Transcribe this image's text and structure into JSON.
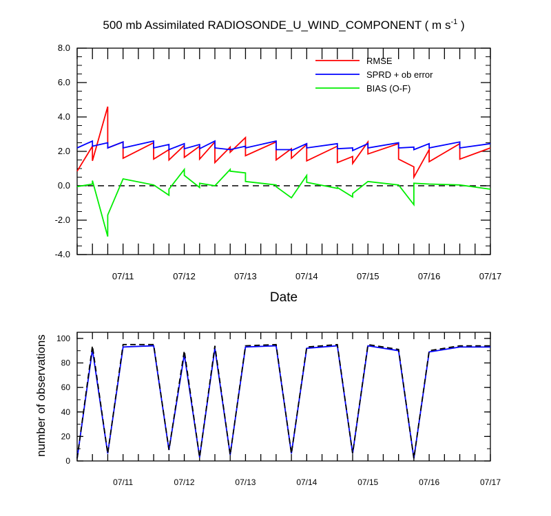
{
  "chart_data": [
    {
      "type": "line",
      "title": "500 mb Assimilated RADIOSONDE_U_WIND_COMPONENT ( m s",
      "title_sup": "-1",
      "title_end": " )",
      "xlabel": "Date",
      "ylabel": "",
      "ylim": [
        -4,
        8
      ],
      "xlim": [
        10.25,
        17.0
      ],
      "y_ticks": [
        "-4.0",
        "-2.0",
        "0.0",
        "2.0",
        "4.0",
        "6.0",
        "8.0"
      ],
      "x_ticks": [
        {
          "x": 11,
          "label": "07/11"
        },
        {
          "x": 12,
          "label": "07/12"
        },
        {
          "x": 13,
          "label": "07/13"
        },
        {
          "x": 14,
          "label": "07/14"
        },
        {
          "x": 15,
          "label": "07/15"
        },
        {
          "x": 16,
          "label": "07/16"
        },
        {
          "x": 17,
          "label": "07/17"
        }
      ],
      "grid": false,
      "legend_position": "top-right",
      "zero_line": {
        "y": 0,
        "style": "dashed",
        "color": "#000000"
      },
      "series": [
        {
          "name": "RMSE",
          "color": "#ff0000",
          "x": [
            10.25,
            10.5,
            10.5,
            10.75,
            10.75,
            11.0,
            11.0,
            11.5,
            11.5,
            11.75,
            11.75,
            12.0,
            12.0,
            12.25,
            12.25,
            12.5,
            12.5,
            12.75,
            12.75,
            13.0,
            13.0,
            13.5,
            13.5,
            13.75,
            13.75,
            14.0,
            14.0,
            14.5,
            14.5,
            14.75,
            14.75,
            15.0,
            15.0,
            15.5,
            15.5,
            15.75,
            15.75,
            16.0,
            16.0,
            16.5,
            16.5,
            17.0
          ],
          "y": [
            0.85,
            2.3,
            1.45,
            4.6,
            2.2,
            2.55,
            1.6,
            2.5,
            1.55,
            2.1,
            1.5,
            2.35,
            1.65,
            2.3,
            1.55,
            2.55,
            1.35,
            2.25,
            1.95,
            2.8,
            1.75,
            2.55,
            1.5,
            2.15,
            1.6,
            2.4,
            1.45,
            2.3,
            1.35,
            1.7,
            1.3,
            2.55,
            1.85,
            2.45,
            1.55,
            1.1,
            0.5,
            2.1,
            1.4,
            2.45,
            1.55,
            2.2
          ],
          "values": [
            0.85,
            2.3,
            1.45,
            4.6,
            2.2,
            2.55,
            1.6,
            2.5,
            1.55,
            2.1,
            1.5,
            2.35,
            1.65,
            2.3,
            1.55,
            2.55,
            1.35,
            2.25,
            1.95,
            2.8,
            1.75,
            2.55,
            1.5,
            2.15,
            1.6,
            2.4,
            1.45,
            2.3,
            1.35,
            1.7,
            1.3,
            2.55,
            1.85,
            2.45,
            1.55,
            1.1,
            0.5,
            2.1,
            1.4,
            2.45,
            1.55,
            2.2
          ]
        },
        {
          "name": "SPRD + ob error",
          "color": "#0000ff",
          "x": [
            10.25,
            10.5,
            10.5,
            10.75,
            10.75,
            11.0,
            11.0,
            11.5,
            11.5,
            11.75,
            11.75,
            12.0,
            12.0,
            12.25,
            12.25,
            12.5,
            12.5,
            12.75,
            12.75,
            13.0,
            13.0,
            13.5,
            13.5,
            13.75,
            13.75,
            14.0,
            14.0,
            14.5,
            14.5,
            14.75,
            14.75,
            15.0,
            15.0,
            15.5,
            15.5,
            15.75,
            15.75,
            16.0,
            16.0,
            16.5,
            16.5,
            17.0
          ],
          "y": [
            2.2,
            2.6,
            2.3,
            2.5,
            2.2,
            2.55,
            2.2,
            2.6,
            2.2,
            2.4,
            2.1,
            2.45,
            2.15,
            2.4,
            2.15,
            2.6,
            2.2,
            2.1,
            2.1,
            2.3,
            2.2,
            2.6,
            2.1,
            2.1,
            2.05,
            2.45,
            2.2,
            2.45,
            2.15,
            2.2,
            2.05,
            2.45,
            2.2,
            2.5,
            2.2,
            2.25,
            2.1,
            2.45,
            2.2,
            2.55,
            2.2,
            2.45
          ],
          "values": [
            2.2,
            2.6,
            2.3,
            2.5,
            2.2,
            2.55,
            2.2,
            2.6,
            2.2,
            2.4,
            2.1,
            2.45,
            2.15,
            2.4,
            2.15,
            2.6,
            2.2,
            2.1,
            2.1,
            2.3,
            2.2,
            2.6,
            2.1,
            2.1,
            2.05,
            2.45,
            2.2,
            2.45,
            2.15,
            2.2,
            2.05,
            2.45,
            2.2,
            2.5,
            2.2,
            2.25,
            2.1,
            2.45,
            2.2,
            2.55,
            2.2,
            2.45
          ]
        },
        {
          "name": "BIAS (O-F)",
          "color": "#00ee00",
          "x": [
            10.25,
            10.5,
            10.5,
            10.75,
            10.75,
            11.0,
            11.0,
            11.5,
            11.5,
            11.75,
            11.75,
            12.0,
            12.0,
            12.25,
            12.25,
            12.5,
            12.5,
            12.75,
            12.75,
            13.0,
            13.0,
            13.5,
            13.5,
            13.75,
            13.75,
            14.0,
            14.0,
            14.5,
            14.5,
            14.75,
            14.75,
            15.0,
            15.0,
            15.5,
            15.5,
            15.75,
            15.75,
            16.0,
            16.0,
            16.5,
            16.5,
            17.0
          ],
          "y": [
            -0.05,
            0.1,
            0.3,
            -2.95,
            -1.7,
            0.4,
            0.4,
            0.05,
            0.05,
            -0.55,
            -0.2,
            0.95,
            0.6,
            -0.1,
            0.15,
            0.0,
            0.0,
            0.95,
            0.85,
            0.75,
            0.25,
            0.05,
            -0.05,
            -0.7,
            -0.7,
            0.6,
            0.2,
            -0.15,
            -0.1,
            -0.65,
            -0.45,
            0.25,
            0.25,
            0.05,
            0.05,
            -1.1,
            0.15,
            0.1,
            0.1,
            0.05,
            0.05,
            -0.2
          ],
          "values": [
            -0.05,
            0.1,
            0.3,
            -2.95,
            -1.7,
            0.4,
            0.4,
            0.05,
            0.05,
            -0.55,
            -0.2,
            0.95,
            0.6,
            -0.1,
            0.15,
            0.0,
            0.0,
            0.95,
            0.85,
            0.75,
            0.25,
            0.05,
            -0.05,
            -0.7,
            -0.7,
            0.6,
            0.2,
            -0.15,
            -0.1,
            -0.65,
            -0.45,
            0.25,
            0.25,
            0.05,
            0.05,
            -1.1,
            0.15,
            0.1,
            0.1,
            0.05,
            0.05,
            -0.2
          ]
        }
      ]
    },
    {
      "type": "line",
      "title": "",
      "xlabel": "",
      "ylabel": "number of observations",
      "ylim": [
        0,
        105
      ],
      "xlim": [
        10.25,
        17.0
      ],
      "y_ticks": [
        "0",
        "20",
        "40",
        "60",
        "80",
        "100"
      ],
      "x_ticks": [
        {
          "x": 11,
          "label": "07/11"
        },
        {
          "x": 12,
          "label": "07/12"
        },
        {
          "x": 13,
          "label": "07/13"
        },
        {
          "x": 14,
          "label": "07/14"
        },
        {
          "x": 15,
          "label": "07/15"
        },
        {
          "x": 16,
          "label": "07/16"
        },
        {
          "x": 17,
          "label": "07/17"
        }
      ],
      "grid": false,
      "series": [
        {
          "color": "#0000ff",
          "style": "solid",
          "x": [
            10.25,
            10.5,
            10.75,
            11.0,
            11.5,
            11.75,
            12.0,
            12.25,
            12.5,
            12.75,
            13.0,
            13.5,
            13.75,
            14.0,
            14.5,
            14.75,
            15.0,
            15.5,
            15.75,
            16.0,
            16.5,
            17.0
          ],
          "y": [
            2,
            91,
            6,
            93,
            94,
            9,
            87,
            3,
            92,
            5,
            93,
            94,
            6,
            92,
            94,
            6,
            94,
            90,
            2,
            89,
            93,
            93
          ],
          "values": [
            2,
            91,
            6,
            93,
            94,
            9,
            87,
            3,
            92,
            5,
            93,
            94,
            6,
            92,
            94,
            6,
            94,
            90,
            2,
            89,
            93,
            93
          ]
        },
        {
          "color": "#000000",
          "style": "dashed",
          "x": [
            10.25,
            10.5,
            10.75,
            11.0,
            11.5,
            11.75,
            12.0,
            12.25,
            12.5,
            12.75,
            13.0,
            13.5,
            13.75,
            14.0,
            14.5,
            14.75,
            15.0,
            15.5,
            15.75,
            16.0,
            16.5,
            17.0
          ],
          "y": [
            2,
            94,
            6,
            95,
            95,
            9,
            90,
            3,
            94,
            5,
            94,
            95,
            6,
            93,
            95,
            6,
            95,
            91,
            2,
            90,
            94,
            94
          ],
          "values": [
            2,
            94,
            6,
            95,
            95,
            9,
            90,
            3,
            94,
            5,
            94,
            95,
            6,
            93,
            95,
            6,
            95,
            91,
            2,
            90,
            94,
            94
          ]
        }
      ]
    }
  ]
}
